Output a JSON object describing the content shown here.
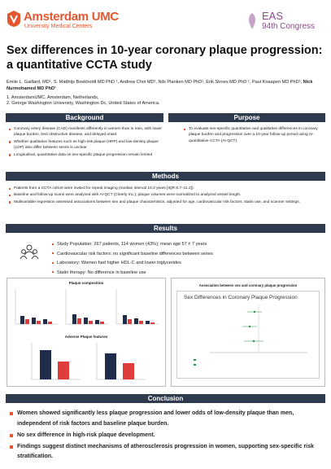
{
  "header": {
    "logo_name": "Amsterdam UMC",
    "logo_subtitle": "University Medical Centers",
    "congress_name": "EAS",
    "congress_edition": "94th Congress"
  },
  "title": "Sex differences in 10-year coronary plaque progression: a quantitative CCTA study",
  "authors": {
    "text": "Emile L. Gaillard, MD¹, S. Matthijs Boekholdt MD PhD ¹, Andrew Choi MD², Nils Planken MD PhD¹, Erik Stroes MD PhD ¹, Paul Knaapen MD PhD¹,",
    "presenting": "Nick Nurmohamed MD PhD¹"
  },
  "affiliations": [
    "1. AmsterdamUMC, Amsterdam, Netherlands,",
    "2. George Washington University, Washington Dc, United States of America."
  ],
  "background": {
    "heading": "Background",
    "bullets": [
      "Coronary artery disease (CAD) manifests differently in women than in men, with lower plaque burden, less obstructive disease, and delayed onset.",
      "Whether qualitative features such as high-risk plaque (HRP) and low-density plaque (LDP) also differ between sexes is unclear",
      "Longitudinal, quantitative data on sex-specific plaque progression remain limited"
    ]
  },
  "purpose": {
    "heading": "Purpose",
    "bullets": [
      "To evaluate sex-specific quantitative and qualitative differences in coronary plaque burden and progression over a 10-year follow-up period using AI-quantitative CCTA (AI-QCT)."
    ]
  },
  "methods": {
    "heading": "Methods",
    "bullets": [
      "Patients from a CCTA cohort were invited for repeat imaging (median interval 10.2 years [IQR 8.7–11.2]).",
      "Baseline and follow-up scans were analyzed with AI-QCT (Cleerly Inc.); plaque volumes were normalized to analyzed vessel length.",
      "Multivariable regression assessed associations between sex and plaque characteristics, adjusted for age, cardiovascular risk factors, statin use, and scanner settings."
    ]
  },
  "results": {
    "heading": "Results",
    "bullets": [
      "Study Population: 267 patients, 114 women (43%); mean age 57 ± 7 years",
      "Cardiovascular risk factors: no significant baseline differences between sexes",
      "Laboratory: Women had higher HDL-C and lower triglycerides",
      "Statin therapy: No difference in baseline use"
    ]
  },
  "figures": {
    "left_title": "Plaque composition",
    "left_subtitle": "Adverse Plaque features",
    "right_title": "Association between sex and coronary plaque progression",
    "right_chart_title": "Sex Differences in Coronary Plaque Progression"
  },
  "conclusion": {
    "heading": "Conclusion",
    "bullets": [
      "Women showed significantly less plaque progression and lower odds of low-density plaque than men, independent of risk factors and baseline plaque burden.",
      "No sex difference in high-risk plaque development.",
      "Findings suggest distinct mechanisms of atherosclerosis progression in women, supporting sex-specific risk stratification."
    ]
  }
}
